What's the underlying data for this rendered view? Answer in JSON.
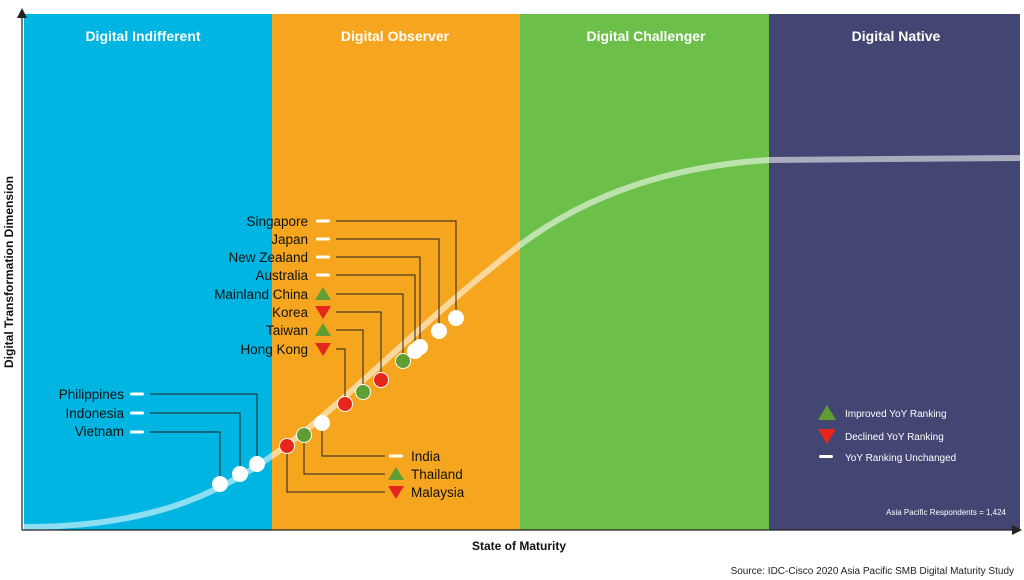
{
  "stages": [
    {
      "name": "Digital Indifferent",
      "color": "#00b5e2"
    },
    {
      "name": "Digital Observer",
      "color": "#f6a61e"
    },
    {
      "name": "Digital Challenger",
      "color": "#6cc04a"
    },
    {
      "name": "Digital Native",
      "color": "#434572"
    }
  ],
  "axes": {
    "y_label": "Digital Transformation Dimension",
    "x_label": "State of Maturity"
  },
  "countries": [
    {
      "name": "Singapore",
      "status": "unchanged"
    },
    {
      "name": "Japan",
      "status": "unchanged"
    },
    {
      "name": "New Zealand",
      "status": "unchanged"
    },
    {
      "name": "Australia",
      "status": "unchanged"
    },
    {
      "name": "Mainland China",
      "status": "improved"
    },
    {
      "name": "Korea",
      "status": "declined"
    },
    {
      "name": "Taiwan",
      "status": "improved"
    },
    {
      "name": "Hong Kong",
      "status": "declined"
    },
    {
      "name": "Philippines",
      "status": "unchanged"
    },
    {
      "name": "Indonesia",
      "status": "unchanged"
    },
    {
      "name": "Vietnam",
      "status": "unchanged"
    },
    {
      "name": "India",
      "status": "unchanged"
    },
    {
      "name": "Thailand",
      "status": "improved"
    },
    {
      "name": "Malaysia",
      "status": "declined"
    }
  ],
  "legend": {
    "improved": "Improved YoY Ranking",
    "declined": "Declined YoY Ranking",
    "unchanged": "YoY Ranking Unchanged"
  },
  "colors": {
    "improved": "#5e9e33",
    "declined": "#e4261c",
    "unchanged": "#ffffff",
    "connector": "#222222"
  },
  "respondents": "Asia Pacific Respondents = 1,424",
  "source": "Source: IDC-Cisco 2020 Asia Pacific SMB Digital Maturity Study"
}
